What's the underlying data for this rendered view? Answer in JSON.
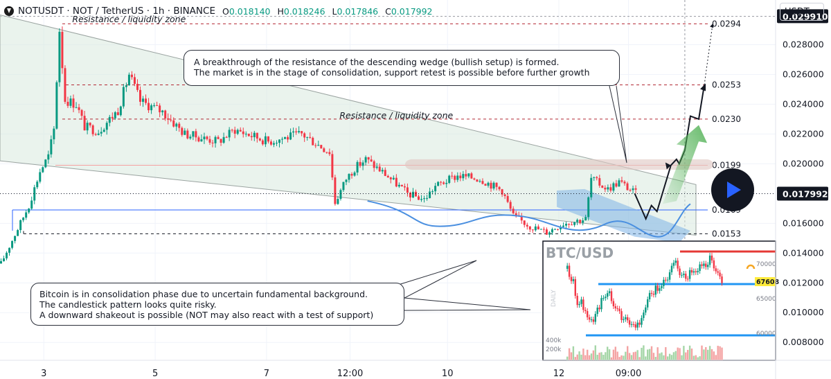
{
  "header": {
    "symbol_title": "NOTUSDT · NOT / TetherUS · 1h · BINANCE",
    "ohlc": [
      {
        "label": "O",
        "value": "0.018140"
      },
      {
        "label": "H",
        "value": "0.018246"
      },
      {
        "label": "L",
        "value": "0.017846"
      },
      {
        "label": "C",
        "value": "0.017992"
      }
    ],
    "currency_button": "USDT"
  },
  "colors": {
    "up": "#089981",
    "down": "#f23645",
    "current_price_bg": "#131722",
    "wedge": "#d8e9de",
    "support_blue": "#2962ff"
  },
  "chart_data": {
    "type": "candlestick",
    "y_axis": {
      "scale": "linear",
      "range": [
        0.0068,
        0.031
      ],
      "tick_labels": [
        "0.008000",
        "0.010000",
        "0.012000",
        "0.014000",
        "0.016000",
        "0.018000",
        "0.020000",
        "0.022000",
        "0.024000",
        "0.026000",
        "0.028000"
      ],
      "tick_values": [
        0.008,
        0.01,
        0.012,
        0.014,
        0.016,
        0.018,
        0.02,
        0.022,
        0.024,
        0.026,
        0.028
      ],
      "highlighted_labels": [
        {
          "value": 0.02991,
          "text": "0.029910"
        },
        {
          "value": 0.017992,
          "text": "0.017992"
        }
      ]
    },
    "x_axis": {
      "labels": [
        {
          "index": 15,
          "text": "3"
        },
        {
          "index": 55,
          "text": "5"
        },
        {
          "index": 95,
          "text": "7"
        },
        {
          "index": 125,
          "text": "12:00"
        },
        {
          "index": 160,
          "text": "10"
        },
        {
          "index": 200,
          "text": "12"
        },
        {
          "index": 225,
          "text": "09:00"
        }
      ]
    },
    "candle_count": 240,
    "price_path": [
      [
        0,
        0.0133
      ],
      [
        10,
        0.0172
      ],
      [
        14,
        0.0195
      ],
      [
        17,
        0.0205
      ],
      [
        19,
        0.0223
      ],
      [
        21,
        0.029
      ],
      [
        23,
        0.0243
      ],
      [
        27,
        0.024
      ],
      [
        30,
        0.0225
      ],
      [
        35,
        0.0222
      ],
      [
        42,
        0.0236
      ],
      [
        46,
        0.026
      ],
      [
        50,
        0.0242
      ],
      [
        58,
        0.0235
      ],
      [
        66,
        0.022
      ],
      [
        78,
        0.0215
      ],
      [
        84,
        0.0223
      ],
      [
        96,
        0.0215
      ],
      [
        108,
        0.022
      ],
      [
        118,
        0.0208
      ],
      [
        120,
        0.0174
      ],
      [
        124,
        0.019
      ],
      [
        127,
        0.0197
      ],
      [
        131,
        0.0203
      ],
      [
        138,
        0.0193
      ],
      [
        146,
        0.018
      ],
      [
        152,
        0.0176
      ],
      [
        156,
        0.0185
      ],
      [
        164,
        0.0192
      ],
      [
        172,
        0.019
      ],
      [
        180,
        0.0182
      ],
      [
        184,
        0.0165
      ],
      [
        190,
        0.0158
      ],
      [
        196,
        0.0154
      ],
      [
        202,
        0.016
      ],
      [
        210,
        0.0163
      ],
      [
        212,
        0.019
      ],
      [
        218,
        0.0183
      ],
      [
        222,
        0.0188
      ],
      [
        228,
        0.018
      ]
    ],
    "current_price": 0.017992,
    "levels": [
      {
        "value": 0.0294,
        "label": "0.0294",
        "style": "dashed"
      },
      {
        "value": 0.0253,
        "label": "0.0253",
        "style": "dashed"
      },
      {
        "value": 0.023,
        "label": "0.0230",
        "style": "dashed"
      },
      {
        "value": 0.0199,
        "label": "0.0199",
        "style": "solid"
      },
      {
        "value": 0.0169,
        "label": "0.0169",
        "style": "solid"
      },
      {
        "value": 0.0153,
        "label": "0.0153",
        "style": "dashed"
      }
    ],
    "annotations": [
      {
        "text": "Resistance / liquidity zone",
        "index": 21,
        "value": 0.0295
      },
      {
        "text": "Resistance / liquidity zone",
        "index": 117,
        "value": 0.02305
      }
    ],
    "projection_path": [
      [
        228,
        0.018
      ],
      [
        232,
        0.0163
      ],
      [
        234,
        0.0172
      ],
      [
        236,
        0.0168
      ],
      [
        241,
        0.0199
      ],
      [
        243,
        0.0203
      ],
      [
        244,
        0.02
      ],
      [
        246,
        0.0209
      ],
      [
        248,
        0.0232
      ],
      [
        251,
        0.023
      ],
      [
        253,
        0.0253
      ]
    ],
    "target_path": [
      [
        253,
        0.0253
      ],
      [
        256,
        0.0294
      ]
    ]
  },
  "inset": {
    "title": "BTC/USD",
    "side_label": "DAILY",
    "price_labels": [
      "70000",
      "65000",
      "60000"
    ],
    "current_label": "67608",
    "volume_labels": [
      "400k",
      "200k"
    ]
  },
  "callouts": {
    "top_lines": [
      "A breakthrough of the resistance of the descending wedge (bullish setup) is formed.",
      "The market is in the stage of consolidation, support retest is possible before further growth"
    ],
    "bottom_lines": [
      "Bitcoin is in consolidation phase due to uncertain fundamental background.",
      "The candlestick pattern looks quite risky.",
      "A downward shakeout is possible (NOT may also react with a test of support)"
    ]
  }
}
